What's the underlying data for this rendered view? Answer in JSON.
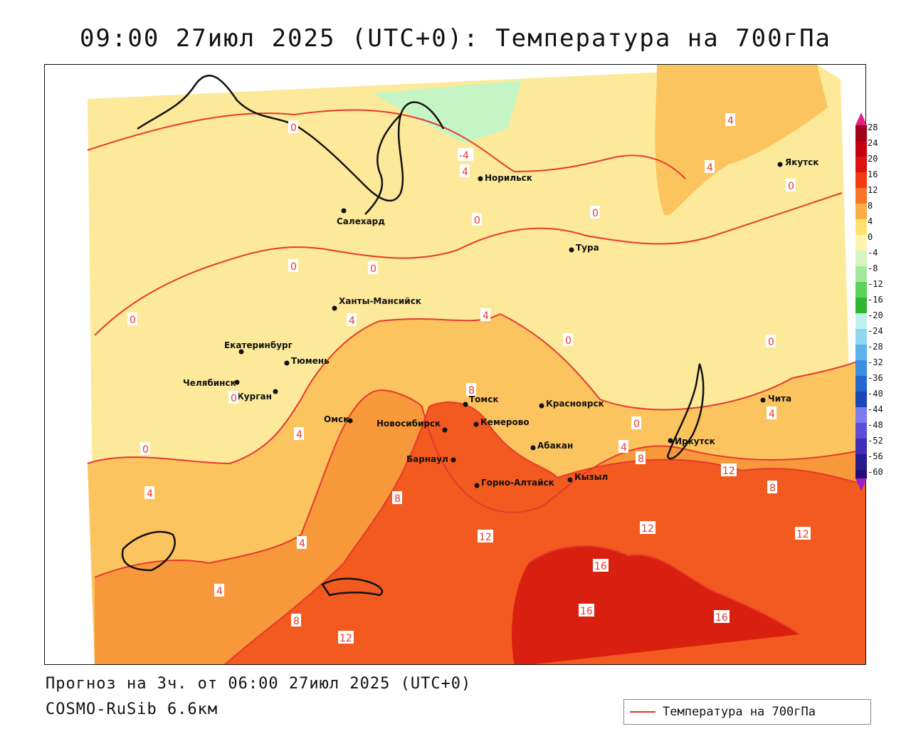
{
  "title": "09:00 27июл 2025 (UTC+0): Температура на 700гПа",
  "footer": {
    "forecast": "Прогноз на 3ч. от 06:00 27июл 2025 (UTC+0)",
    "model": "COSMO-RuSib 6.6км"
  },
  "legend": {
    "label": "Температура на 700гПа",
    "line_color": "#e53a2e"
  },
  "colorbar": {
    "ticks": [
      "28",
      "24",
      "20",
      "16",
      "12",
      "8",
      "4",
      "0",
      "-4",
      "-8",
      "-12",
      "-16",
      "-20",
      "-24",
      "-28",
      "-32",
      "-36",
      "-40",
      "-44",
      "-48",
      "-52",
      "-56",
      "-60"
    ]
  },
  "colors": {
    "t_0_4": "#fde99a",
    "t_4_8": "#fbc45e",
    "t_8_12": "#f7983a",
    "t_12_16": "#f25a1f",
    "t_16_20": "#d81f10",
    "t_neg": "#c5f5c5",
    "contour": "#e53a2e"
  },
  "cities": [
    {
      "name": "Салехард"
    },
    {
      "name": "Норильск"
    },
    {
      "name": "Якутск"
    },
    {
      "name": "Тура"
    },
    {
      "name": "Ханты-Мансийск"
    },
    {
      "name": "Екатеринбург"
    },
    {
      "name": "Тюмень"
    },
    {
      "name": "Челябинск"
    },
    {
      "name": "Курган"
    },
    {
      "name": "Омск"
    },
    {
      "name": "Томск"
    },
    {
      "name": "Новосибирск"
    },
    {
      "name": "Кемерово"
    },
    {
      "name": "Красноярск"
    },
    {
      "name": "Абакан"
    },
    {
      "name": "Барнаул"
    },
    {
      "name": "Горно-Алтайск"
    },
    {
      "name": "Кызыл"
    },
    {
      "name": "Иркутск"
    },
    {
      "name": "Чита"
    }
  ],
  "isotherm_labels": [
    "0",
    "0",
    "0",
    "0",
    "0",
    "0",
    "0",
    "0",
    "0",
    "0",
    "0",
    "0",
    "4",
    "4",
    "4",
    "4",
    "4",
    "4",
    "4",
    "4",
    "4",
    "4",
    "4",
    "8",
    "8",
    "8",
    "8",
    "8",
    "12",
    "12",
    "12",
    "12",
    "12",
    "16",
    "16",
    "16",
    "-4"
  ]
}
